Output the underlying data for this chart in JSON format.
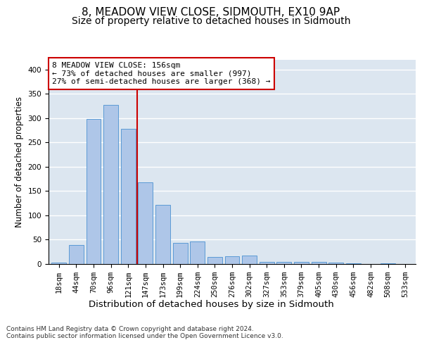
{
  "title": "8, MEADOW VIEW CLOSE, SIDMOUTH, EX10 9AP",
  "subtitle": "Size of property relative to detached houses in Sidmouth",
  "xlabel": "Distribution of detached houses by size in Sidmouth",
  "ylabel": "Number of detached properties",
  "bar_labels": [
    "18sqm",
    "44sqm",
    "70sqm",
    "96sqm",
    "121sqm",
    "147sqm",
    "173sqm",
    "199sqm",
    "224sqm",
    "250sqm",
    "276sqm",
    "302sqm",
    "327sqm",
    "353sqm",
    "379sqm",
    "405sqm",
    "430sqm",
    "456sqm",
    "482sqm",
    "508sqm",
    "533sqm"
  ],
  "bar_values": [
    3,
    39,
    298,
    328,
    278,
    168,
    121,
    44,
    46,
    15,
    16,
    17,
    4,
    5,
    5,
    5,
    3,
    1,
    0,
    2,
    0
  ],
  "bar_color": "#aec6e8",
  "bar_edge_color": "#5b9bd5",
  "vline_bin_index": 4.5,
  "vline_color": "#cc0000",
  "annotation_text": "8 MEADOW VIEW CLOSE: 156sqm\n← 73% of detached houses are smaller (997)\n27% of semi-detached houses are larger (368) →",
  "annotation_box_color": "#ffffff",
  "annotation_box_edge": "#cc0000",
  "ylim": [
    0,
    420
  ],
  "yticks": [
    0,
    50,
    100,
    150,
    200,
    250,
    300,
    350,
    400
  ],
  "background_color": "#dce6f0",
  "grid_color": "#ffffff",
  "footer": "Contains HM Land Registry data © Crown copyright and database right 2024.\nContains public sector information licensed under the Open Government Licence v3.0.",
  "title_fontsize": 11,
  "subtitle_fontsize": 10,
  "xlabel_fontsize": 9.5,
  "ylabel_fontsize": 8.5,
  "tick_fontsize": 7.5,
  "annotation_fontsize": 8,
  "footer_fontsize": 6.5
}
